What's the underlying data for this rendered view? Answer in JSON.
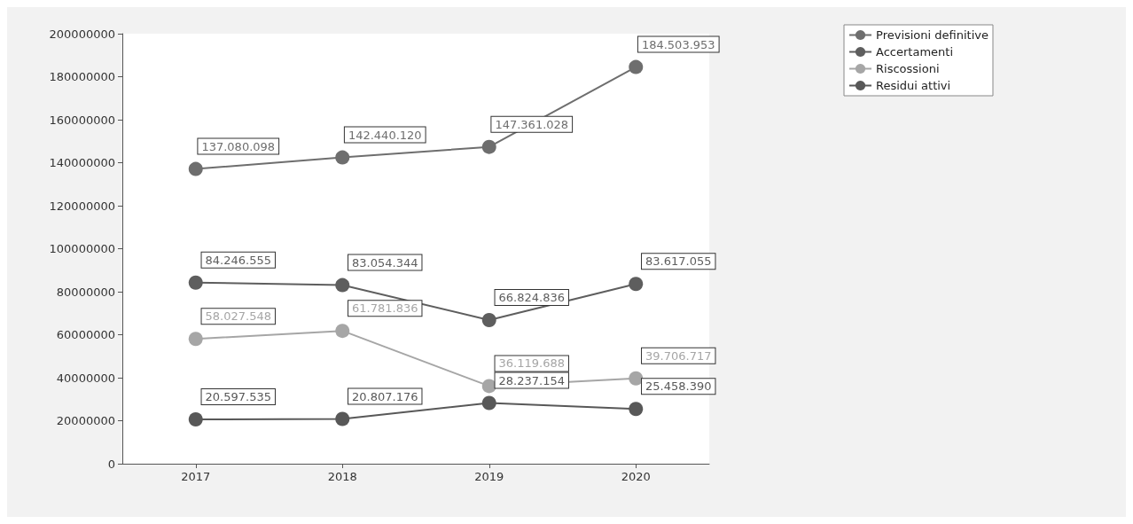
{
  "chart_data": {
    "type": "line",
    "categories": [
      "2017",
      "2018",
      "2019",
      "2020"
    ],
    "series": [
      {
        "name": "Previsioni definitive",
        "color": "#6e6e6e",
        "values": [
          137080098,
          142440120,
          147361028,
          184503953
        ],
        "value_labels": [
          "137.080.098",
          "142.440.120",
          "147.361.028",
          "184.503.953"
        ]
      },
      {
        "name": "Accertamenti",
        "color": "#5e5e5e",
        "values": [
          84246555,
          83054344,
          66824836,
          83617055
        ],
        "value_labels": [
          "84.246.555",
          "83.054.344",
          "66.824.836",
          "83.617.055"
        ]
      },
      {
        "name": "Riscossioni",
        "color": "#a6a6a6",
        "values": [
          58027548,
          61781836,
          36119688,
          39706717
        ],
        "value_labels": [
          "58.027.548",
          "61.781.836",
          "36.119.688",
          "39.706.717"
        ]
      },
      {
        "name": "Residui attivi",
        "color": "#585858",
        "values": [
          20597535,
          20807176,
          28237154,
          25458390
        ],
        "value_labels": [
          "20.597.535",
          "20.807.176",
          "28.237.154",
          "25.458.390"
        ]
      }
    ],
    "ylim": [
      0,
      200000000
    ],
    "yticks": [
      0,
      20000000,
      40000000,
      60000000,
      80000000,
      100000000,
      120000000,
      140000000,
      160000000,
      180000000,
      200000000
    ],
    "grid": false,
    "legend": "top right",
    "marker": "circle",
    "line_style": "solid"
  }
}
